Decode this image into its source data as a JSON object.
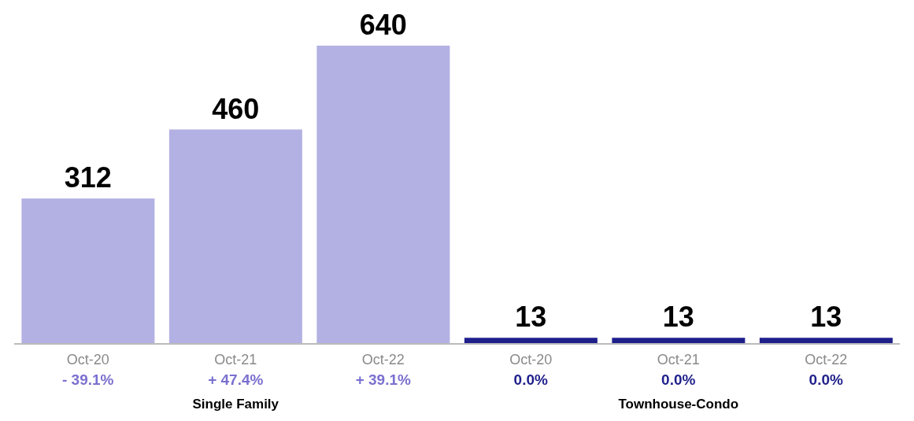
{
  "chart_data": {
    "type": "bar",
    "categories": [
      "Oct-20",
      "Oct-21",
      "Oct-22",
      "Oct-20",
      "Oct-21",
      "Oct-22"
    ],
    "values": [
      312,
      460,
      640,
      13,
      13,
      13
    ],
    "colors": [
      "#b3b1e3",
      "#b3b1e3",
      "#b3b1e3",
      "#1f1f8c",
      "#1f1f8c",
      "#1f1f8c"
    ],
    "data_labels": true,
    "annotations": [
      "- 39.1%",
      "+ 47.4%",
      "+ 39.1%",
      "0.0%",
      "0.0%",
      "0.0%",
      "Single Family",
      "Townhouse-Condo"
    ],
    "grid": false,
    "legend": false
  }
}
